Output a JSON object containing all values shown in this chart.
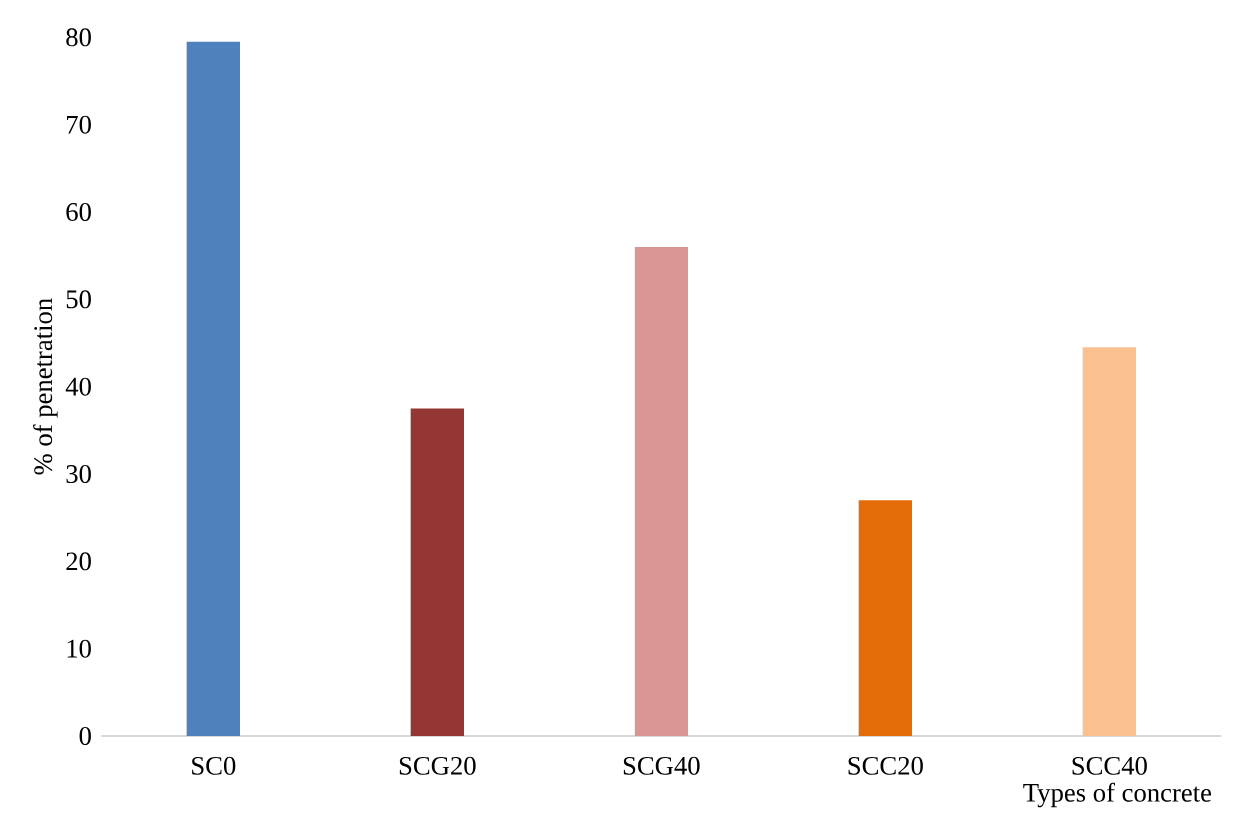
{
  "chart_data": {
    "type": "bar",
    "xlabel": "Types of concrete",
    "ylabel": "% of penetration",
    "categories": [
      "SC0",
      "SCG20",
      "SCG40",
      "SCC20",
      "SCC40"
    ],
    "values": [
      79.5,
      37.5,
      56,
      27,
      44.5
    ],
    "colors": [
      "#4f81bd",
      "#943634",
      "#d99694",
      "#e36c09",
      "#fac090"
    ],
    "ylim": [
      0,
      80
    ],
    "yticks": [
      0,
      10,
      20,
      30,
      40,
      50,
      60,
      70,
      80
    ],
    "grid": false
  }
}
